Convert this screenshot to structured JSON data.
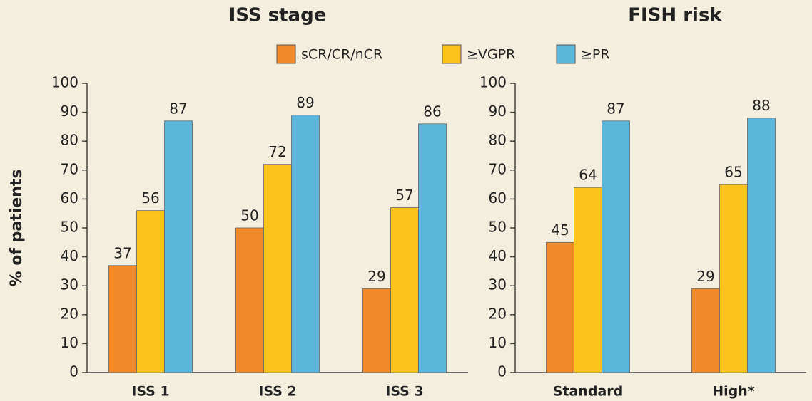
{
  "chart_data": [
    {
      "type": "bar",
      "title": "ISS stage",
      "y_label": "% of patients",
      "categories": [
        "ISS 1",
        "ISS 2",
        "ISS 3"
      ],
      "series": [
        {
          "name": "sCR/CR/nCR",
          "color": "#f0892a",
          "values": [
            37,
            50,
            29
          ]
        },
        {
          "name": "≥VGPR",
          "color": "#fcc31c",
          "values": [
            56,
            72,
            57
          ]
        },
        {
          "name": "≥PR",
          "color": "#5ab6da",
          "values": [
            87,
            89,
            86
          ]
        }
      ],
      "ylim": [
        0,
        100
      ],
      "yticks": [
        0,
        10,
        20,
        30,
        40,
        50,
        60,
        70,
        80,
        90,
        100
      ]
    },
    {
      "type": "bar",
      "title": "FISH risk",
      "categories": [
        "Standard",
        "High*"
      ],
      "series": [
        {
          "color": "#f0892a",
          "values": [
            45,
            29
          ]
        },
        {
          "color": "#fcc31c",
          "values": [
            64,
            65
          ]
        },
        {
          "color": "#5ab6da",
          "values": [
            87,
            88
          ]
        }
      ],
      "ylim": [
        0,
        100
      ],
      "yticks": [
        0,
        10,
        20,
        30,
        40,
        50,
        60,
        70,
        80,
        90,
        100
      ]
    }
  ]
}
